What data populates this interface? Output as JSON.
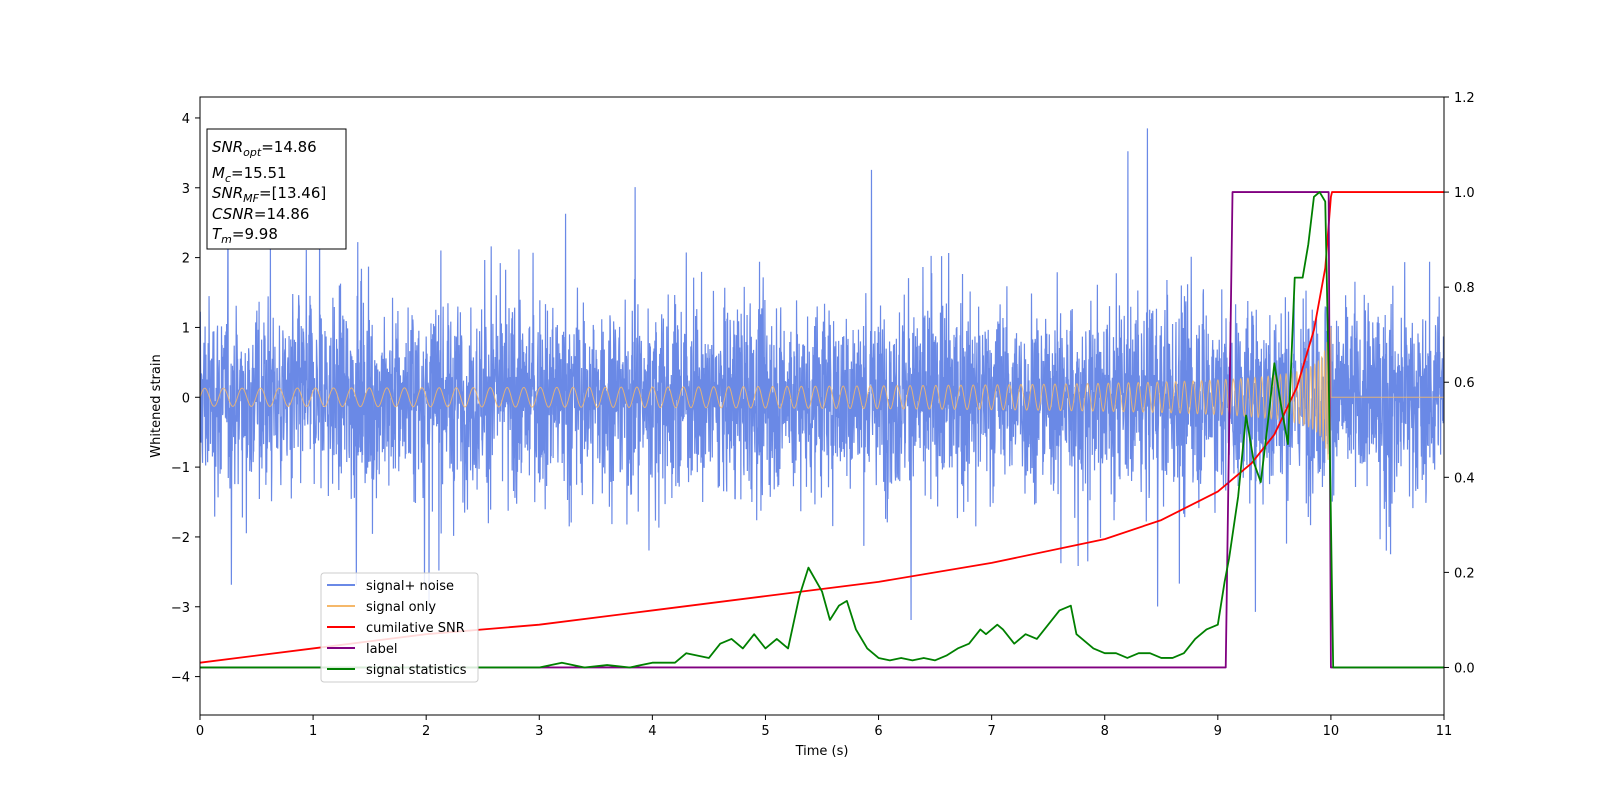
{
  "chart_data": {
    "type": "line",
    "xlabel": "Time (s)",
    "ylabel": "Whitened strain",
    "xlim": [
      0,
      11
    ],
    "ylim_left": [
      -4.55,
      4.3
    ],
    "ylim_right": [
      -0.1,
      1.2
    ],
    "x_ticks": [
      0,
      1,
      2,
      3,
      4,
      5,
      6,
      7,
      8,
      9,
      10,
      11
    ],
    "y_ticks_left": [
      -4,
      -3,
      -2,
      -1,
      0,
      1,
      2,
      3,
      4
    ],
    "y_ticks_right": [
      0.0,
      0.2,
      0.4,
      0.6,
      0.8,
      1.0,
      1.2
    ],
    "grid": false,
    "legend_position": "lower-left",
    "info_box": {
      "snr_opt": {
        "name": "SNR",
        "sub": "opt",
        "value": "=14.86"
      },
      "mc": {
        "name": "M",
        "sub": "c",
        "value": "=15.51"
      },
      "snr_mf": {
        "name": "SNR",
        "sub": "MF",
        "value": "=[13.46]"
      },
      "csnr": {
        "name": "CSNR",
        "sub": "",
        "value": "=14.86"
      },
      "tm": {
        "name": "T",
        "sub": "m",
        "value": "=9.98"
      }
    },
    "series": [
      {
        "name": "signal+ noise",
        "color": "#6a89e6",
        "axis": "left",
        "description_envelope": {
          "typical_abs": 1.6,
          "peaks_max": 3.85,
          "troughs_min": -4.2
        }
      },
      {
        "name": "signal only",
        "color": "#f5b86a",
        "axis": "left",
        "chirp": {
          "start_amp": 0.05,
          "end_amp": 1.0,
          "merger_time": 9.98,
          "end_time": 10.0
        }
      },
      {
        "name": "cumilative SNR",
        "color": "#ff0000",
        "axis": "right",
        "x": [
          0,
          1,
          2,
          3,
          4,
          5,
          6,
          7,
          8,
          8.5,
          9,
          9.3,
          9.5,
          9.7,
          9.85,
          9.95,
          10.0,
          10.01,
          11
        ],
        "y": [
          0.01,
          0.04,
          0.07,
          0.09,
          0.12,
          0.15,
          0.18,
          0.22,
          0.27,
          0.31,
          0.37,
          0.43,
          0.49,
          0.59,
          0.71,
          0.84,
          0.99,
          1.0,
          1.0
        ]
      },
      {
        "name": "label",
        "color": "#800080",
        "axis": "right",
        "x": [
          0,
          9.07,
          9.13,
          9.98,
          10.0,
          11
        ],
        "y": [
          0.0,
          0.0,
          1.0,
          1.0,
          0.0,
          0.0
        ]
      },
      {
        "name": "signal statistics",
        "color": "#008000",
        "axis": "right",
        "x": [
          0,
          0.5,
          1,
          1.5,
          2,
          2.5,
          3,
          3.2,
          3.4,
          3.6,
          3.8,
          4.0,
          4.2,
          4.3,
          4.5,
          4.6,
          4.7,
          4.8,
          4.9,
          5.0,
          5.1,
          5.2,
          5.3,
          5.38,
          5.5,
          5.57,
          5.65,
          5.72,
          5.8,
          5.9,
          6.0,
          6.1,
          6.2,
          6.3,
          6.4,
          6.5,
          6.6,
          6.7,
          6.8,
          6.9,
          6.95,
          7.05,
          7.1,
          7.2,
          7.3,
          7.4,
          7.5,
          7.6,
          7.7,
          7.75,
          7.8,
          7.9,
          8.0,
          8.1,
          8.2,
          8.3,
          8.4,
          8.5,
          8.6,
          8.7,
          8.8,
          8.9,
          9.0,
          9.06,
          9.1,
          9.18,
          9.25,
          9.32,
          9.38,
          9.45,
          9.5,
          9.56,
          9.62,
          9.68,
          9.75,
          9.8,
          9.85,
          9.9,
          9.95,
          9.98,
          10.02,
          10.07,
          11
        ],
        "y": [
          0.0,
          0.0,
          0.0,
          0.0,
          0.0,
          0.0,
          0.0,
          0.01,
          0.0,
          0.005,
          0.0,
          0.01,
          0.01,
          0.03,
          0.02,
          0.05,
          0.06,
          0.04,
          0.07,
          0.04,
          0.06,
          0.04,
          0.15,
          0.21,
          0.16,
          0.1,
          0.13,
          0.14,
          0.08,
          0.04,
          0.02,
          0.015,
          0.02,
          0.015,
          0.02,
          0.015,
          0.025,
          0.04,
          0.05,
          0.08,
          0.07,
          0.09,
          0.08,
          0.05,
          0.07,
          0.06,
          0.09,
          0.12,
          0.13,
          0.07,
          0.06,
          0.04,
          0.03,
          0.03,
          0.02,
          0.03,
          0.03,
          0.02,
          0.02,
          0.03,
          0.06,
          0.08,
          0.09,
          0.18,
          0.23,
          0.36,
          0.53,
          0.43,
          0.39,
          0.53,
          0.64,
          0.55,
          0.47,
          0.82,
          0.82,
          0.89,
          0.99,
          1.0,
          0.98,
          0.62,
          0.0,
          0.0,
          0.0
        ]
      }
    ]
  }
}
